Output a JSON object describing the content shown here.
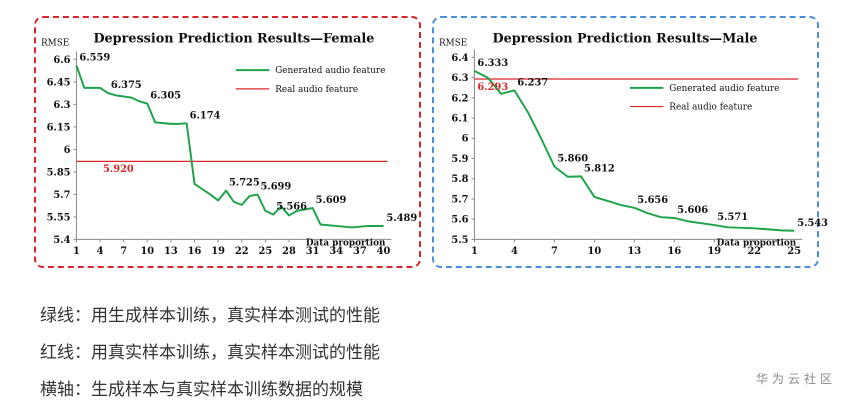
{
  "captions": {
    "green": "绿线：用生成样本训练，真实样本测试的性能",
    "red": "红线：用真实样本训练，真实样本测试的性能",
    "axis": "横轴：生成样本与真实样本训练数据的规模"
  },
  "watermark": "华为云社区",
  "chart_data": [
    {
      "type": "line",
      "title": "Depression Prediction Results—Female",
      "ylabel": "RMSE",
      "xlabel": "Data proportion",
      "ylim": [
        5.4,
        6.6
      ],
      "yticks": [
        "5.4",
        "5.55",
        "5.7",
        "5.85",
        "6",
        "6.15",
        "6.3",
        "6.45",
        "6.6"
      ],
      "xlim": [
        1,
        40
      ],
      "xticks": [
        "1",
        "4",
        "7",
        "10",
        "13",
        "16",
        "19",
        "22",
        "25",
        "28",
        "31",
        "34",
        "37",
        "40"
      ],
      "colors": {
        "generated": "#1fa34a",
        "real": "#d9262c"
      },
      "series": [
        {
          "name": "Generated audio feature",
          "points": [
            [
              1,
              6.559
            ],
            [
              2,
              6.41
            ],
            [
              4,
              6.41
            ],
            [
              5,
              6.375
            ],
            [
              6,
              6.36
            ],
            [
              8,
              6.345
            ],
            [
              9,
              6.32
            ],
            [
              10,
              6.305
            ],
            [
              11,
              6.18
            ],
            [
              13,
              6.17
            ],
            [
              14,
              6.17
            ],
            [
              15,
              6.174
            ],
            [
              16,
              5.77
            ],
            [
              18,
              5.7
            ],
            [
              19,
              5.66
            ],
            [
              20,
              5.725
            ],
            [
              21,
              5.65
            ],
            [
              22,
              5.63
            ],
            [
              23,
              5.69
            ],
            [
              24,
              5.699
            ],
            [
              25,
              5.59
            ],
            [
              26,
              5.566
            ],
            [
              27,
              5.62
            ],
            [
              28,
              5.56
            ],
            [
              29,
              5.59
            ],
            [
              31,
              5.609
            ],
            [
              32,
              5.5
            ],
            [
              34,
              5.49
            ],
            [
              36,
              5.48
            ],
            [
              38,
              5.49
            ],
            [
              40,
              5.489
            ]
          ]
        },
        {
          "name": "Real audio feature",
          "value": 5.92
        }
      ],
      "data_labels": [
        {
          "x": 1,
          "y": 6.559,
          "text": "6.559"
        },
        {
          "x": 5,
          "y": 6.375,
          "text": "6.375"
        },
        {
          "x": 10,
          "y": 6.305,
          "text": "6.305"
        },
        {
          "x": 15,
          "y": 6.174,
          "text": "6.174"
        },
        {
          "x": 20,
          "y": 5.725,
          "text": "5.725"
        },
        {
          "x": 24,
          "y": 5.699,
          "text": "5.699"
        },
        {
          "x": 26,
          "y": 5.566,
          "text": "5.566"
        },
        {
          "x": 31,
          "y": 5.609,
          "text": "5.609"
        },
        {
          "x": 40,
          "y": 5.489,
          "text": "5.489"
        },
        {
          "x": 4,
          "y": 5.92,
          "text": "5.920",
          "series": "real"
        }
      ],
      "legend": [
        "Generated audio feature",
        "Real audio feature"
      ],
      "legend_position": "top-right",
      "grid": false
    },
    {
      "type": "line",
      "title": "Depression Prediction Results—Male",
      "ylabel": "RMSE",
      "xlabel": "Data proportion",
      "ylim": [
        5.5,
        6.4
      ],
      "yticks": [
        "5.5",
        "5.6",
        "5.7",
        "5.8",
        "5.9",
        "6",
        "6.1",
        "6.2",
        "6.3",
        "6.4"
      ],
      "xlim": [
        1,
        25
      ],
      "xticks": [
        "1",
        "4",
        "7",
        "10",
        "13",
        "16",
        "19",
        "22",
        "25"
      ],
      "colors": {
        "generated": "#1fa34a",
        "real": "#d9262c"
      },
      "series": [
        {
          "name": "Generated audio feature",
          "points": [
            [
              1,
              6.333
            ],
            [
              2,
              6.3
            ],
            [
              3,
              6.22
            ],
            [
              4,
              6.237
            ],
            [
              5,
              6.13
            ],
            [
              6,
              6.0
            ],
            [
              7,
              5.86
            ],
            [
              8,
              5.81
            ],
            [
              9,
              5.812
            ],
            [
              10,
              5.71
            ],
            [
              11,
              5.69
            ],
            [
              12,
              5.67
            ],
            [
              13,
              5.656
            ],
            [
              14,
              5.63
            ],
            [
              15,
              5.61
            ],
            [
              16,
              5.606
            ],
            [
              17,
              5.59
            ],
            [
              19,
              5.571
            ],
            [
              20,
              5.56
            ],
            [
              22,
              5.555
            ],
            [
              23,
              5.55
            ],
            [
              24,
              5.545
            ],
            [
              25,
              5.543
            ]
          ]
        },
        {
          "name": "Real audio feature",
          "value": 6.293
        }
      ],
      "data_labels": [
        {
          "x": 1,
          "y": 6.333,
          "text": "6.333"
        },
        {
          "x": 4,
          "y": 6.237,
          "text": "6.237"
        },
        {
          "x": 7,
          "y": 5.86,
          "text": "5.860"
        },
        {
          "x": 9,
          "y": 5.812,
          "text": "5.812"
        },
        {
          "x": 13,
          "y": 5.656,
          "text": "5.656"
        },
        {
          "x": 16,
          "y": 5.606,
          "text": "5.606"
        },
        {
          "x": 19,
          "y": 5.571,
          "text": "5.571"
        },
        {
          "x": 25,
          "y": 5.543,
          "text": "5.543"
        },
        {
          "x": 1,
          "y": 6.293,
          "text": "6.293",
          "series": "real"
        }
      ],
      "legend": [
        "Generated audio feature",
        "Real audio feature"
      ],
      "legend_position": "top-right",
      "grid": false
    }
  ]
}
